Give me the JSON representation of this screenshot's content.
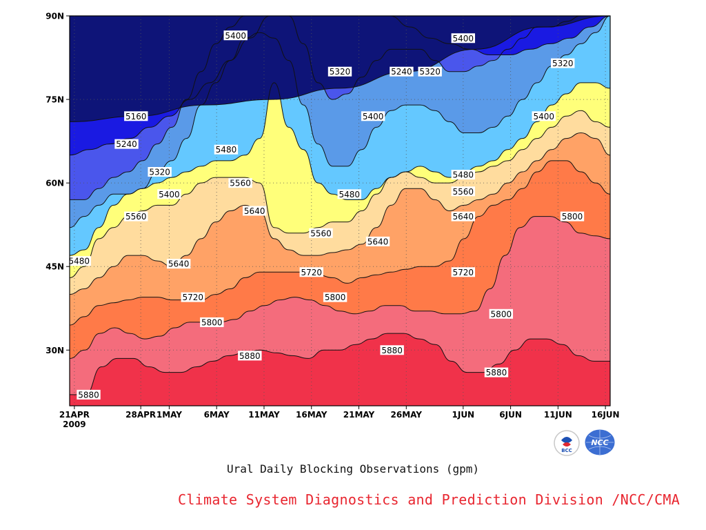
{
  "chart_data": {
    "type": "heatmap",
    "subtype": "filled-contour time-latitude",
    "title": "Ural Daily Blocking Observations (gpm)",
    "xlabel": "",
    "ylabel": "",
    "x_ticks": [
      {
        "label": "21APR",
        "sublabel": "2009",
        "day": 0
      },
      {
        "label": "28APR",
        "day": 7
      },
      {
        "label": "1MAY",
        "day": 10
      },
      {
        "label": "6MAY",
        "day": 15
      },
      {
        "label": "11MAY",
        "day": 20
      },
      {
        "label": "16MAY",
        "day": 25
      },
      {
        "label": "21MAY",
        "day": 30
      },
      {
        "label": "26MAY",
        "day": 35
      },
      {
        "label": "1JUN",
        "day": 41
      },
      {
        "label": "6JUN",
        "day": 46
      },
      {
        "label": "11JUN",
        "day": 51
      },
      {
        "label": "16JUN",
        "day": 56
      }
    ],
    "y_ticks": [
      {
        "label": "30N",
        "lat": 30
      },
      {
        "label": "45N",
        "lat": 45
      },
      {
        "label": "60N",
        "lat": 60
      },
      {
        "label": "75N",
        "lat": 75
      },
      {
        "label": "90N",
        "lat": 90
      }
    ],
    "xlim": [
      -0.5,
      56.5
    ],
    "ylim": [
      20,
      90
    ],
    "grid": true,
    "contour_levels": [
      5160,
      5240,
      5320,
      5400,
      5480,
      5560,
      5640,
      5720,
      5800,
      5880
    ],
    "colors": [
      "#f0324a",
      "#f46c7c",
      "#ff7a48",
      "#ffa266",
      "#ffdc9e",
      "#ffff7a",
      "#64c8ff",
      "#5a9ae8",
      "#4a56ec",
      "#1a1ae2",
      "#0e1478"
    ],
    "contours": [
      {
        "level": 5880,
        "lat": [
          22,
          22,
          27,
          28.5,
          28.5,
          27,
          26,
          26,
          27,
          28,
          29,
          29.5,
          30,
          29.5,
          29,
          28.5,
          30,
          30,
          31,
          32,
          33,
          33,
          32,
          31,
          28,
          26,
          26,
          27.5,
          30,
          32,
          32,
          31,
          29,
          28,
          28
        ],
        "labels": [
          {
            "day": 1.5,
            "lat": 22
          },
          {
            "day": 18.5,
            "lat": 29
          },
          {
            "day": 33.5,
            "lat": 30
          },
          {
            "day": 44.5,
            "lat": 26
          }
        ]
      },
      {
        "level": 5800,
        "lat": [
          28.5,
          30,
          33,
          34,
          33,
          32,
          32.5,
          34,
          35,
          35,
          35,
          35.5,
          37,
          38,
          39,
          39.5,
          39,
          38,
          37,
          36.5,
          37,
          38,
          38,
          37,
          37,
          36.5,
          36.5,
          37,
          41,
          47,
          52,
          54,
          54,
          53,
          51,
          50.5,
          50
        ],
        "labels": [
          {
            "day": 14.5,
            "lat": 35
          },
          {
            "day": 27.5,
            "lat": 39.5
          },
          {
            "day": 45,
            "lat": 36.5
          },
          {
            "day": 52.5,
            "lat": 54
          }
        ]
      },
      {
        "level": 5720,
        "lat": [
          34.5,
          36,
          38,
          38.5,
          39,
          39.5,
          39.5,
          39,
          39,
          39,
          40,
          41,
          43,
          44,
          44,
          44,
          44,
          43.5,
          43,
          42,
          43,
          43.5,
          44,
          44.5,
          45,
          45,
          46,
          50,
          54,
          56,
          57,
          59,
          62,
          64,
          64,
          62,
          60,
          58
        ],
        "labels": [
          {
            "day": 12.5,
            "lat": 39.5
          },
          {
            "day": 25,
            "lat": 44
          },
          {
            "day": 41,
            "lat": 44
          }
        ]
      },
      {
        "level": 5640,
        "lat": [
          40,
          41,
          43,
          45,
          47,
          47,
          46,
          45,
          47,
          50,
          53,
          55,
          56,
          55,
          50,
          48,
          47,
          47,
          47.5,
          48,
          49,
          52,
          56,
          59,
          59,
          57,
          55,
          56,
          57,
          58,
          60,
          62,
          64,
          66,
          68,
          69,
          68,
          65
        ],
        "labels": [
          {
            "day": 11,
            "lat": 45.5
          },
          {
            "day": 19,
            "lat": 55
          },
          {
            "day": 32,
            "lat": 49.5
          },
          {
            "day": 41,
            "lat": 54
          }
        ]
      },
      {
        "level": 5560,
        "lat": [
          43,
          45,
          50,
          52,
          54,
          55,
          56,
          56,
          58,
          60,
          61,
          61,
          61,
          60,
          52,
          51,
          51,
          52,
          53,
          53,
          55,
          58,
          61,
          62,
          61,
          60,
          60,
          61,
          62,
          63,
          64,
          66,
          68,
          70,
          72,
          73,
          71,
          70
        ],
        "labels": [
          {
            "day": 6.5,
            "lat": 54
          },
          {
            "day": 17.5,
            "lat": 60
          },
          {
            "day": 26,
            "lat": 51
          },
          {
            "day": 41,
            "lat": 58.5
          }
        ]
      },
      {
        "level": 5480,
        "lat": [
          47,
          48,
          52,
          56,
          58,
          59,
          60,
          61,
          62,
          63,
          64,
          64,
          65,
          68,
          78,
          70,
          66,
          60,
          58,
          57,
          57,
          59,
          61,
          62,
          63,
          62,
          61,
          62,
          63,
          64,
          66,
          68,
          71,
          74,
          76,
          78,
          78,
          77
        ],
        "labels": [
          {
            "day": 0.5,
            "lat": 46
          },
          {
            "day": 16,
            "lat": 66
          },
          {
            "day": 29,
            "lat": 58
          },
          {
            "day": 41,
            "lat": 61.5
          }
        ]
      },
      {
        "level": 5400,
        "lat": [
          52,
          54,
          56,
          58,
          58,
          59,
          62,
          64,
          68,
          74,
          78,
          82,
          86,
          87,
          86,
          82,
          74,
          67,
          63,
          63,
          66,
          70,
          73,
          74,
          74,
          73,
          71,
          69,
          69,
          70,
          72,
          75,
          78,
          81,
          83,
          85,
          87,
          90
        ],
        "labels": [
          {
            "day": 10,
            "lat": 58
          },
          {
            "day": 17,
            "lat": 86.5
          },
          {
            "day": 31.5,
            "lat": 72
          },
          {
            "day": 41,
            "lat": 86
          },
          {
            "day": 49.5,
            "lat": 72
          }
        ]
      },
      {
        "level": 5320,
        "lat": [
          57,
          57,
          59,
          61,
          62,
          64,
          67,
          70,
          75,
          80,
          85,
          88,
          90,
          90,
          90,
          90,
          85,
          78,
          75,
          76,
          79,
          82,
          84,
          84,
          84,
          82,
          80,
          80,
          81,
          82,
          84,
          86,
          88,
          88,
          89,
          90,
          90,
          90
        ],
        "labels": [
          {
            "day": 9,
            "lat": 62
          },
          {
            "day": 28,
            "lat": 80
          },
          {
            "day": 37.5,
            "lat": 80
          },
          {
            "day": 51.5,
            "lat": 81.5
          }
        ]
      },
      {
        "level": 5240,
        "lat": [
          65,
          66,
          67,
          68,
          70,
          72,
          75,
          78,
          82,
          86,
          90,
          90,
          90,
          90,
          90,
          90,
          90,
          88,
          86,
          85,
          84,
          83,
          83,
          84,
          85,
          86,
          88,
          90
        ],
        "labels": [
          {
            "day": 5.5,
            "lat": 67
          },
          {
            "day": 34.5,
            "lat": 80
          }
        ]
      },
      {
        "level": 5160,
        "lat": [
          71,
          72,
          74,
          75,
          77,
          80,
          84,
          88,
          90
        ],
        "labels": [
          {
            "day": 6.5,
            "lat": 72
          }
        ]
      }
    ]
  },
  "footer": {
    "subtitle": "Ural Daily Blocking Observations (gpm)",
    "credit": "Climate System Diagnostics and Prediction Division /NCC/CMA",
    "credit_color": "#e8252f",
    "logos": [
      "BCC",
      "NCC"
    ]
  }
}
